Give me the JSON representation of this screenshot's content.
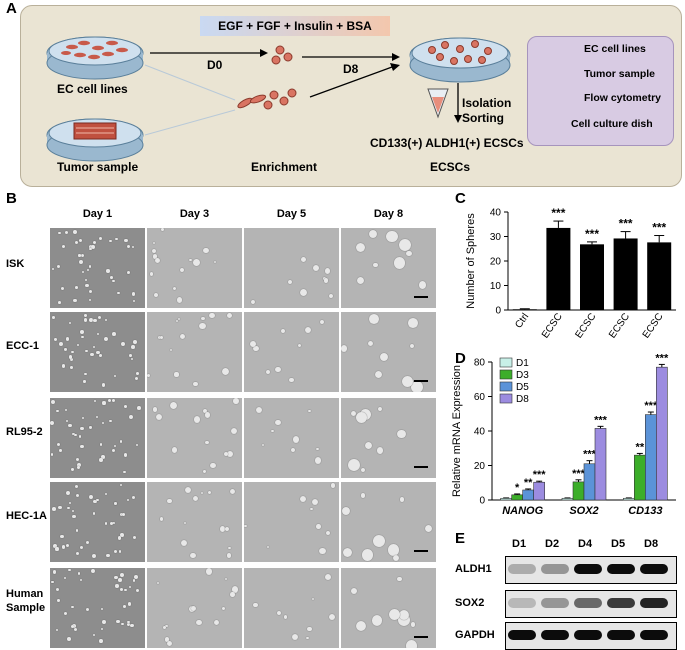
{
  "panels": {
    "a": "A",
    "b": "B",
    "c": "C",
    "d": "D",
    "e": "E"
  },
  "panel_a": {
    "growth_factors": "EGF + FGF + Insulin + BSA",
    "ec_cell_lines": "EC cell lines",
    "tumor_sample": "Tumor sample",
    "d0": "D0",
    "d8": "D8",
    "enrichment": "Enrichment",
    "isolation_line1": "Isolation",
    "isolation_line2": "Sorting",
    "result_line1": "CD133(+) ALDH1(+) ECSCs",
    "result_line2": "ECSCs",
    "legend": {
      "ec_cell_lines": "EC cell lines",
      "tumor_sample": "Tumor sample",
      "flow_cytometry": "Flow cytometry",
      "cell_culture_dish": "Cell culture dish"
    }
  },
  "panel_b": {
    "days": [
      "Day 1",
      "Day 3",
      "Day 5",
      "Day 8"
    ],
    "rows": [
      "ISK",
      "ECC-1",
      "RL95-2",
      "HEC-1A",
      "Human Sample"
    ],
    "human_row_line1": "Human",
    "human_row_line2": "Sample"
  },
  "chart_data": [
    {
      "type": "bar",
      "panel": "C",
      "categories": [
        "Ctrl",
        "ECSC isk",
        "ECSC ecc",
        "ECSC rl",
        "ECSC hec"
      ],
      "category_labels": [
        {
          "main": "Ctrl",
          "sup": ""
        },
        {
          "main": "ECSC",
          "sup": "isk"
        },
        {
          "main": "ECSC",
          "sup": "ecc"
        },
        {
          "main": "ECSC",
          "sup": "rl"
        },
        {
          "main": "ECSC",
          "sup": "hec"
        }
      ],
      "values": [
        0.3,
        33.5,
        26.8,
        29.2,
        27.6
      ],
      "errors": [
        0.2,
        2.8,
        1.0,
        2.8,
        2.8
      ],
      "significance": [
        "",
        "***",
        "***",
        "***",
        "***"
      ],
      "ylabel": "Number of Spheres",
      "yticks": [
        0,
        10,
        20,
        30,
        40
      ],
      "ylim": [
        0,
        40
      ],
      "bar_color": "#000000"
    },
    {
      "type": "bar",
      "panel": "D",
      "categories": [
        "NANOG",
        "SOX2",
        "CD133"
      ],
      "series": [
        {
          "name": "D1",
          "values": [
            1.0,
            1.0,
            1.0
          ],
          "errors": [
            0.2,
            0.2,
            0.2
          ],
          "color": "#c8f0e8",
          "sig": [
            "",
            "",
            ""
          ]
        },
        {
          "name": "D3",
          "values": [
            3.0,
            10.5,
            26.0
          ],
          "errors": [
            0.5,
            1.2,
            1.0
          ],
          "color": "#3cae2a",
          "sig": [
            "*",
            "***",
            "**"
          ]
        },
        {
          "name": "D5",
          "values": [
            5.8,
            21.0,
            49.5
          ],
          "errors": [
            0.6,
            1.8,
            1.5
          ],
          "color": "#5b93d8",
          "sig": [
            "**",
            "***",
            "***"
          ]
        },
        {
          "name": "D8",
          "values": [
            10.3,
            41.5,
            77.0
          ],
          "errors": [
            0.6,
            1.2,
            1.6
          ],
          "color": "#9c8ce0",
          "sig": [
            "***",
            "***",
            "***"
          ]
        }
      ],
      "ylabel": "Relative mRNA Expression",
      "yticks": [
        0,
        20,
        40,
        60,
        80
      ],
      "ylim": [
        0,
        80
      ],
      "legend": "top-left"
    }
  ],
  "panel_e": {
    "lanes": [
      "D1",
      "D2",
      "D4",
      "D5",
      "D8"
    ],
    "proteins": [
      "ALDH1",
      "SOX2",
      "GAPDH"
    ],
    "band_intensity": {
      "ALDH1": [
        0.25,
        0.35,
        0.95,
        0.95,
        0.95
      ],
      "SOX2": [
        0.2,
        0.35,
        0.55,
        0.75,
        0.85
      ],
      "GAPDH": [
        0.95,
        0.95,
        0.95,
        0.95,
        0.95
      ]
    }
  }
}
